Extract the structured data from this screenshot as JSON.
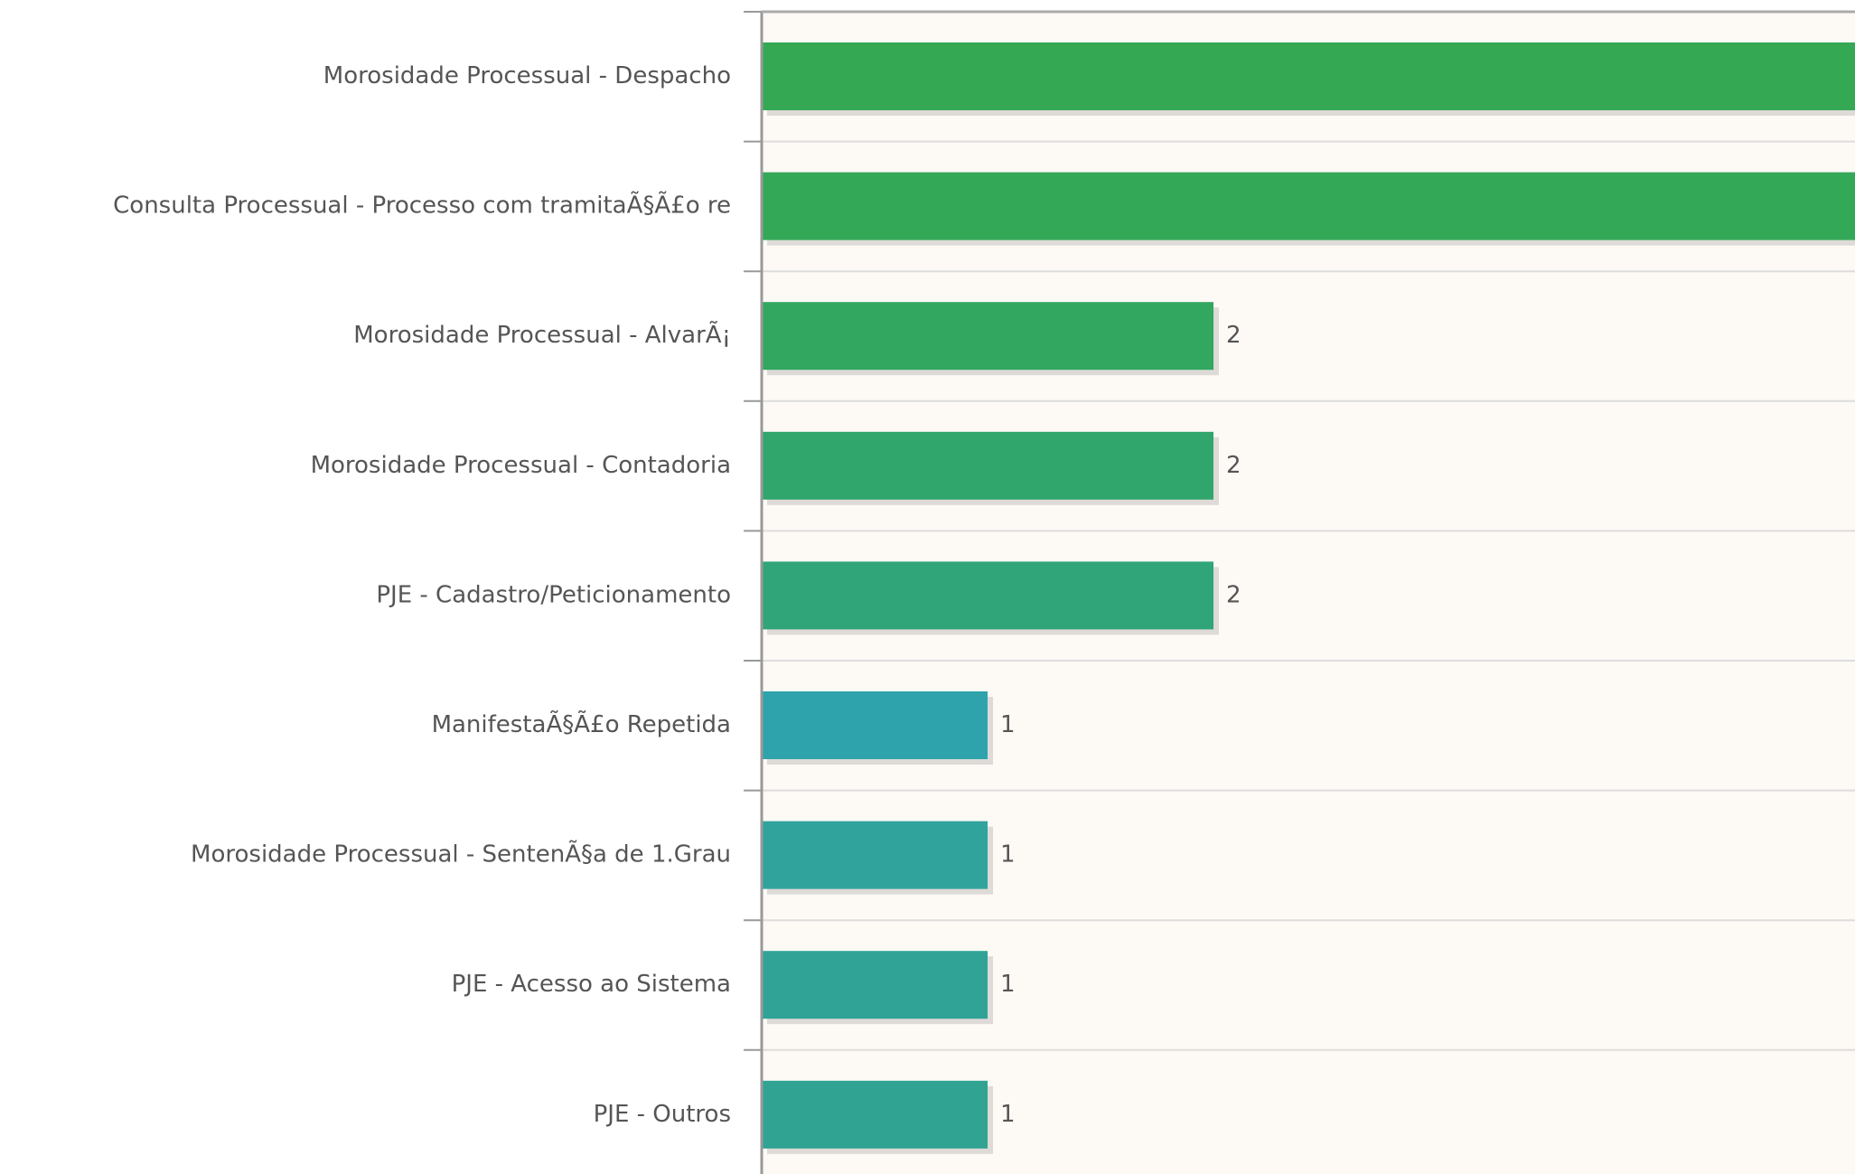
{
  "chart_data": {
    "type": "hbar",
    "categories": [
      "Morosidade Processual - Despacho",
      "Consulta Processual - Processo com tramitaÃ§Ã£o re",
      "Morosidade Processual - AlvarÃ¡",
      "Morosidade Processual - Contadoria",
      "PJE - Cadastro/Peticionamento",
      "ManifestaÃ§Ã£o Repetida",
      "Morosidade Processual - SentenÃ§a de 1.Grau",
      "PJE - Acesso ao Sistema",
      "PJE - Outros"
    ],
    "values": [
      5,
      5,
      2,
      2,
      2,
      1,
      1,
      1,
      1
    ],
    "colors": [
      "#34a853",
      "#33a857",
      "#32a760",
      "#31a66c",
      "#30a57a",
      "#2fa3ab",
      "#30a39c",
      "#30a396",
      "#30a393"
    ],
    "xlim": [
      0,
      4.84
    ]
  }
}
